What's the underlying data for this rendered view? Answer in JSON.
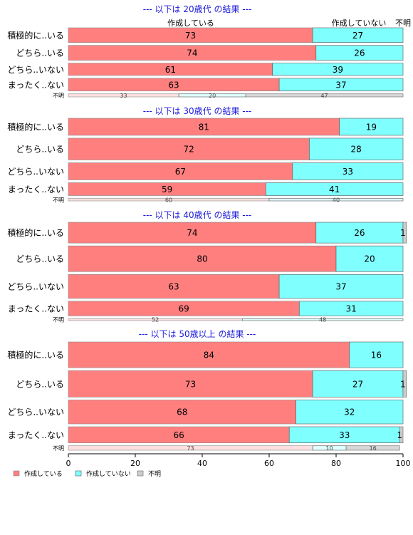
{
  "chart_data": {
    "type": "bar",
    "orientation": "horizontal",
    "stacked": true,
    "percent": true,
    "xlim": [
      0,
      100
    ],
    "xticks": [
      "0",
      "20",
      "40",
      "60",
      "80",
      "100"
    ],
    "grid": false,
    "legend_position": "bottom-left",
    "series": [
      {
        "name": "作成している",
        "color": "#FF7F7F"
      },
      {
        "name": "作成していない",
        "color": "#80FFFF"
      },
      {
        "name": "不明",
        "color": "#CCCCCC"
      }
    ],
    "header_labels": [
      "作成している",
      "作成していない",
      "不明"
    ],
    "groups": [
      {
        "title": "--- 以下は 20歳代 の結果 ---",
        "categories": [
          "積極的に..いる",
          "どちら..いる",
          "どちら..いない",
          "まったく..ない",
          "不明"
        ],
        "values": [
          [
            73,
            27,
            0
          ],
          [
            74,
            26,
            0
          ],
          [
            61,
            39,
            0
          ],
          [
            63,
            37,
            0
          ],
          [
            33,
            20,
            47
          ]
        ],
        "labels": [
          [
            "73",
            "27",
            ""
          ],
          [
            "74",
            "26",
            ""
          ],
          [
            "61",
            "39",
            ""
          ],
          [
            "63",
            "37",
            ""
          ],
          [
            "33",
            "20",
            "47"
          ]
        ],
        "row_weights": [
          73,
          74,
          61,
          63,
          15
        ]
      },
      {
        "title": "--- 以下は 30歳代 の結果 ---",
        "categories": [
          "積極的に..いる",
          "どちら..いる",
          "どちら..いない",
          "まったく..ない",
          "不明"
        ],
        "values": [
          [
            81,
            19,
            0
          ],
          [
            72,
            28,
            0
          ],
          [
            67,
            33,
            0
          ],
          [
            59,
            41,
            0
          ],
          [
            60,
            40,
            0
          ]
        ],
        "labels": [
          [
            "81",
            "19",
            ""
          ],
          [
            "72",
            "28",
            ""
          ],
          [
            "67",
            "33",
            ""
          ],
          [
            "59",
            "41",
            ""
          ],
          [
            "60",
            "40",
            ""
          ]
        ],
        "row_weights": [
          69,
          88,
          69,
          52,
          10
        ]
      },
      {
        "title": "--- 以下は 40歳代 の結果 ---",
        "categories": [
          "積極的に..いる",
          "どちら..いる",
          "どちら..いない",
          "まったく..ない",
          "不明"
        ],
        "values": [
          [
            74,
            26,
            1
          ],
          [
            80,
            20,
            0
          ],
          [
            63,
            37,
            0
          ],
          [
            69,
            31,
            0
          ],
          [
            52,
            48,
            0
          ]
        ],
        "labels": [
          [
            "74",
            "26",
            "1"
          ],
          [
            "80",
            "20",
            ""
          ],
          [
            "63",
            "37",
            ""
          ],
          [
            "69",
            "31",
            ""
          ],
          [
            "52",
            "48",
            ""
          ]
        ],
        "row_weights": [
          92,
          114,
          106,
          65,
          8
        ]
      },
      {
        "title": "--- 以下は 50歳以上 の結果 ---",
        "categories": [
          "積極的に..いる",
          "どちら..いる",
          "どちら..いない",
          "まったく..ない",
          "不明"
        ],
        "values": [
          [
            84,
            16,
            0
          ],
          [
            73,
            27,
            1
          ],
          [
            68,
            32,
            0
          ],
          [
            66,
            33,
            1
          ],
          [
            73,
            10,
            16
          ]
        ],
        "labels": [
          [
            "84",
            "16",
            ""
          ],
          [
            "73",
            "27",
            "1"
          ],
          [
            "68",
            "32",
            ""
          ],
          [
            "66",
            "33",
            "1"
          ],
          [
            "73",
            "10",
            "16"
          ]
        ],
        "row_weights": [
          110,
          113,
          102,
          69,
          19
        ]
      }
    ]
  }
}
